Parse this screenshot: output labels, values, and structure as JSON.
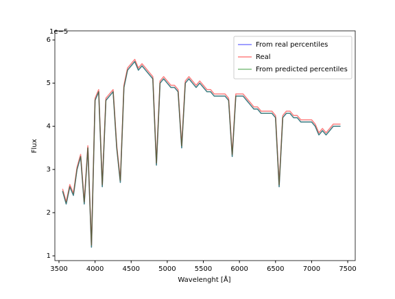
{
  "chart_data": {
    "type": "line",
    "xlabel": "Wavelenght [Å]",
    "ylabel": "Flux",
    "y_offset_label": "1e−5",
    "x": [
      3550,
      3600,
      3650,
      3700,
      3750,
      3800,
      3850,
      3900,
      3950,
      4000,
      4050,
      4100,
      4150,
      4200,
      4250,
      4300,
      4350,
      4400,
      4450,
      4500,
      4550,
      4600,
      4650,
      4700,
      4750,
      4800,
      4850,
      4900,
      4950,
      5000,
      5050,
      5100,
      5150,
      5200,
      5250,
      5300,
      5350,
      5400,
      5450,
      5500,
      5550,
      5600,
      5650,
      5700,
      5750,
      5800,
      5850,
      5900,
      5950,
      6000,
      6050,
      6100,
      6150,
      6200,
      6250,
      6300,
      6350,
      6400,
      6450,
      6500,
      6550,
      6600,
      6650,
      6700,
      6750,
      6800,
      6850,
      6900,
      6950,
      7000,
      7050,
      7100,
      7150,
      7200,
      7250,
      7300,
      7350,
      7400
    ],
    "series": [
      {
        "name": "From real percentiles",
        "color": "#0000ff",
        "values": [
          2.5,
          2.2,
          2.6,
          2.4,
          3.0,
          3.3,
          2.2,
          3.5,
          1.2,
          4.6,
          4.8,
          2.6,
          4.6,
          4.7,
          4.8,
          3.5,
          2.7,
          4.9,
          5.3,
          5.4,
          5.5,
          5.3,
          5.4,
          5.3,
          5.2,
          5.1,
          3.1,
          5.0,
          5.1,
          5.0,
          4.9,
          4.9,
          4.8,
          3.5,
          5.0,
          5.1,
          5.0,
          4.9,
          5.0,
          4.9,
          4.8,
          4.8,
          4.7,
          4.7,
          4.7,
          4.7,
          4.6,
          3.3,
          4.7,
          4.7,
          4.7,
          4.6,
          4.5,
          4.4,
          4.4,
          4.3,
          4.3,
          4.3,
          4.3,
          4.2,
          2.6,
          4.2,
          4.3,
          4.3,
          4.2,
          4.2,
          4.1,
          4.1,
          4.1,
          4.1,
          4.0,
          3.8,
          3.9,
          3.8,
          3.9,
          4.0,
          4.0,
          4.0
        ]
      },
      {
        "name": "Real",
        "color": "#ff0000",
        "values": [
          2.55,
          2.25,
          2.65,
          2.45,
          3.05,
          3.35,
          2.25,
          3.55,
          1.25,
          4.65,
          4.85,
          2.65,
          4.65,
          4.75,
          4.85,
          3.55,
          2.75,
          4.95,
          5.35,
          5.45,
          5.55,
          5.35,
          5.45,
          5.35,
          5.25,
          5.15,
          3.15,
          5.05,
          5.15,
          5.05,
          4.95,
          4.95,
          4.85,
          3.55,
          5.05,
          5.15,
          5.05,
          4.95,
          5.05,
          4.95,
          4.85,
          4.85,
          4.75,
          4.75,
          4.75,
          4.75,
          4.65,
          3.35,
          4.75,
          4.75,
          4.75,
          4.65,
          4.55,
          4.45,
          4.45,
          4.35,
          4.35,
          4.35,
          4.35,
          4.25,
          2.65,
          4.25,
          4.35,
          4.35,
          4.25,
          4.25,
          4.15,
          4.15,
          4.15,
          4.15,
          4.05,
          3.85,
          3.95,
          3.85,
          3.95,
          4.05,
          4.05,
          4.05
        ]
      },
      {
        "name": "From predicted percentiles",
        "color": "#008000",
        "values": [
          2.5,
          2.2,
          2.6,
          2.4,
          3.0,
          3.3,
          2.2,
          3.5,
          1.2,
          4.6,
          4.8,
          2.6,
          4.6,
          4.7,
          4.8,
          3.5,
          2.7,
          4.9,
          5.3,
          5.4,
          5.5,
          5.3,
          5.4,
          5.3,
          5.2,
          5.1,
          3.1,
          5.0,
          5.1,
          5.0,
          4.9,
          4.9,
          4.8,
          3.5,
          5.0,
          5.1,
          5.0,
          4.9,
          5.0,
          4.9,
          4.8,
          4.8,
          4.7,
          4.7,
          4.7,
          4.7,
          4.6,
          3.3,
          4.7,
          4.7,
          4.7,
          4.6,
          4.5,
          4.4,
          4.4,
          4.3,
          4.3,
          4.3,
          4.3,
          4.2,
          2.6,
          4.2,
          4.3,
          4.3,
          4.2,
          4.2,
          4.1,
          4.1,
          4.1,
          4.1,
          4.0,
          3.8,
          3.9,
          3.8,
          3.9,
          4.0,
          4.0,
          4.0
        ]
      }
    ],
    "alpha": 0.5,
    "xlim": [
      3443,
      7604
    ],
    "xticks": [
      3500,
      4000,
      4500,
      5000,
      5500,
      6000,
      6500,
      7000,
      7500
    ],
    "ylim": [
      0.89,
      6.21
    ],
    "yticks": [
      1,
      2,
      3,
      4,
      5,
      6
    ],
    "grid": false,
    "legend": "upper right"
  }
}
